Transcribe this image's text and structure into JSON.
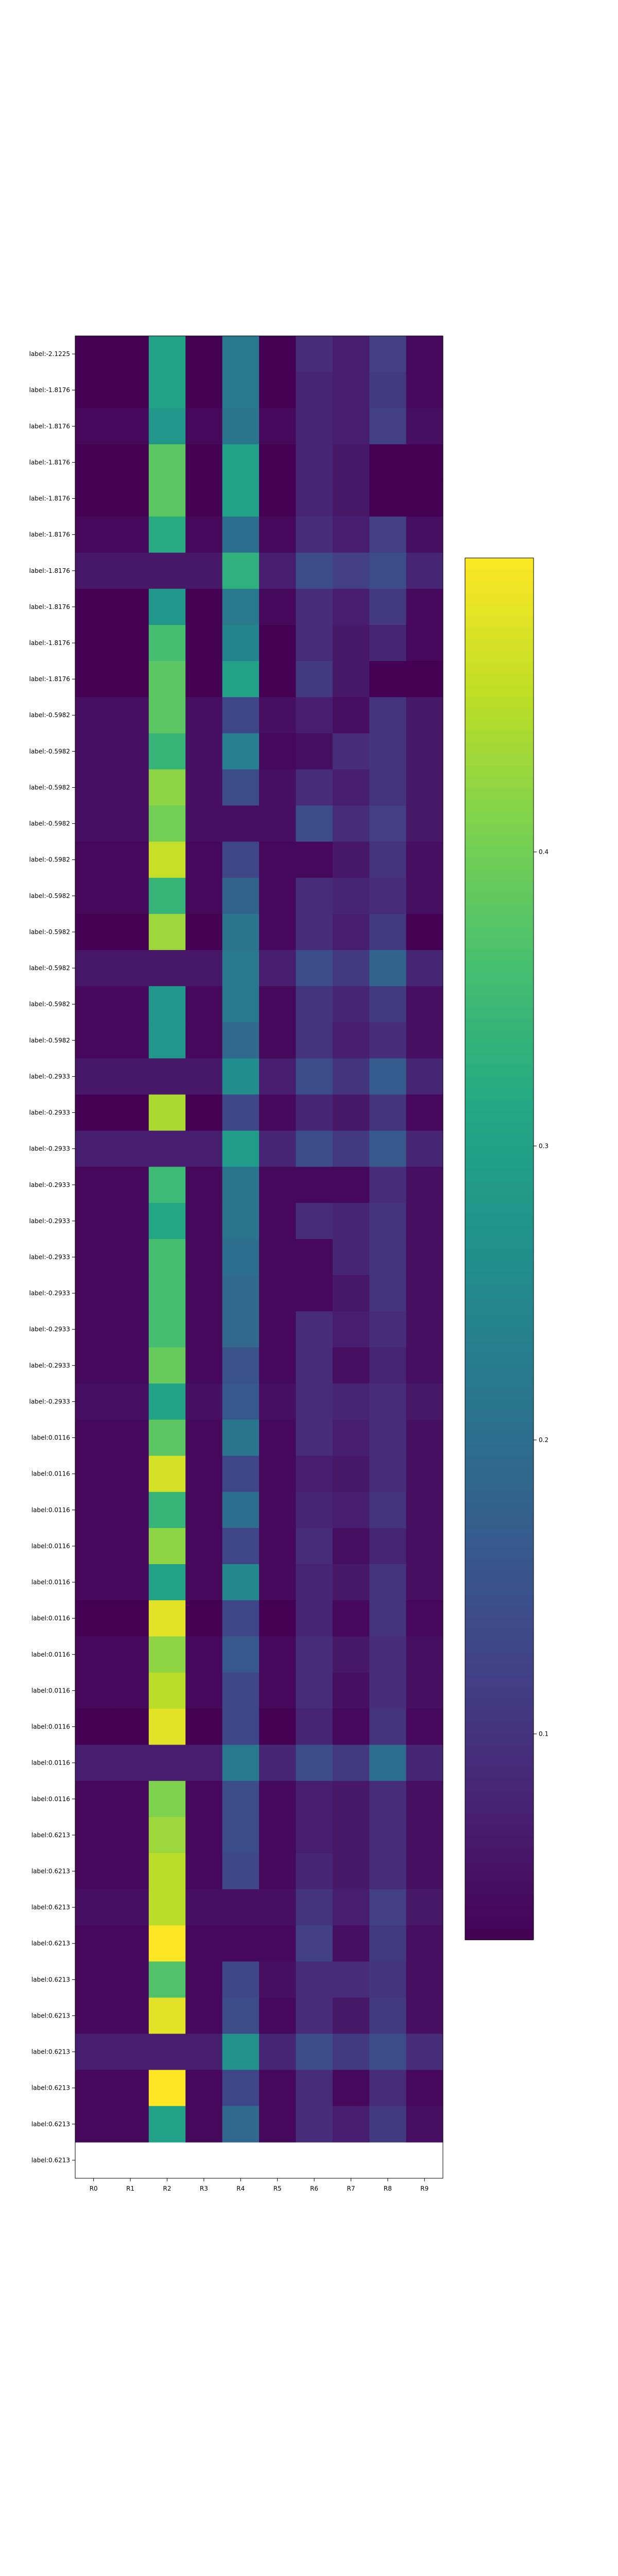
{
  "chart_data": {
    "type": "heatmap",
    "columns": [
      "R0",
      "R1",
      "R2",
      "R3",
      "R4",
      "R5",
      "R6",
      "R7",
      "R8",
      "R9"
    ],
    "rows": [
      "label:-2.1225",
      "label:-1.8176",
      "label:-1.8176",
      "label:-1.8176",
      "label:-1.8176",
      "label:-1.8176",
      "label:-1.8176",
      "label:-1.8176",
      "label:-1.8176",
      "label:-1.8176",
      "label:-0.5982",
      "label:-0.5982",
      "label:-0.5982",
      "label:-0.5982",
      "label:-0.5982",
      "label:-0.5982",
      "label:-0.5982",
      "label:-0.5982",
      "label:-0.5982",
      "label:-0.5982",
      "label:-0.2933",
      "label:-0.2933",
      "label:-0.2933",
      "label:-0.2933",
      "label:-0.2933",
      "label:-0.2933",
      "label:-0.2933",
      "label:-0.2933",
      "label:-0.2933",
      "label:-0.2933",
      "label:0.0116",
      "label:0.0116",
      "label:0.0116",
      "label:0.0116",
      "label:0.0116",
      "label:0.0116",
      "label:0.0116",
      "label:0.0116",
      "label:0.0116",
      "label:0.0116",
      "label:0.0116",
      "label:0.6213",
      "label:0.6213",
      "label:0.6213",
      "label:0.6213",
      "label:0.6213",
      "label:0.6213",
      "label:0.6213",
      "label:0.6213",
      "label:0.6213",
      "label:0.6213"
    ],
    "values": [
      [
        0.03,
        0.03,
        0.3,
        0.03,
        0.22,
        0.03,
        0.09,
        0.07,
        0.12,
        0.04
      ],
      [
        0.03,
        0.03,
        0.3,
        0.03,
        0.22,
        0.03,
        0.08,
        0.07,
        0.11,
        0.04
      ],
      [
        0.04,
        0.04,
        0.28,
        0.04,
        0.21,
        0.04,
        0.08,
        0.07,
        0.12,
        0.05
      ],
      [
        0.03,
        0.03,
        0.38,
        0.03,
        0.3,
        0.03,
        0.08,
        0.06,
        0.03,
        0.03
      ],
      [
        0.03,
        0.03,
        0.38,
        0.03,
        0.3,
        0.03,
        0.08,
        0.06,
        0.03,
        0.03
      ],
      [
        0.04,
        0.04,
        0.32,
        0.04,
        0.2,
        0.04,
        0.09,
        0.07,
        0.12,
        0.05
      ],
      [
        0.06,
        0.06,
        0.06,
        0.06,
        0.33,
        0.07,
        0.14,
        0.12,
        0.14,
        0.08
      ],
      [
        0.03,
        0.03,
        0.28,
        0.03,
        0.22,
        0.04,
        0.09,
        0.07,
        0.11,
        0.04
      ],
      [
        0.03,
        0.03,
        0.36,
        0.03,
        0.24,
        0.03,
        0.09,
        0.06,
        0.08,
        0.04
      ],
      [
        0.03,
        0.03,
        0.38,
        0.03,
        0.3,
        0.03,
        0.11,
        0.06,
        0.03,
        0.03
      ],
      [
        0.05,
        0.05,
        0.38,
        0.05,
        0.13,
        0.05,
        0.07,
        0.05,
        0.1,
        0.06
      ],
      [
        0.05,
        0.05,
        0.34,
        0.05,
        0.23,
        0.04,
        0.05,
        0.09,
        0.1,
        0.06
      ],
      [
        0.05,
        0.05,
        0.42,
        0.05,
        0.14,
        0.05,
        0.09,
        0.07,
        0.1,
        0.06
      ],
      [
        0.05,
        0.05,
        0.4,
        0.05,
        0.05,
        0.05,
        0.14,
        0.09,
        0.12,
        0.06
      ],
      [
        0.04,
        0.04,
        0.46,
        0.04,
        0.13,
        0.04,
        0.04,
        0.06,
        0.1,
        0.05
      ],
      [
        0.04,
        0.04,
        0.34,
        0.04,
        0.18,
        0.04,
        0.09,
        0.08,
        0.09,
        0.05
      ],
      [
        0.03,
        0.03,
        0.43,
        0.03,
        0.21,
        0.04,
        0.09,
        0.07,
        0.11,
        0.03
      ],
      [
        0.06,
        0.06,
        0.06,
        0.06,
        0.22,
        0.07,
        0.14,
        0.11,
        0.18,
        0.08
      ],
      [
        0.04,
        0.04,
        0.28,
        0.04,
        0.22,
        0.04,
        0.1,
        0.08,
        0.11,
        0.05
      ],
      [
        0.04,
        0.04,
        0.28,
        0.04,
        0.19,
        0.04,
        0.1,
        0.07,
        0.09,
        0.05
      ],
      [
        0.06,
        0.06,
        0.06,
        0.06,
        0.26,
        0.07,
        0.14,
        0.1,
        0.17,
        0.08
      ],
      [
        0.03,
        0.03,
        0.44,
        0.03,
        0.13,
        0.04,
        0.08,
        0.06,
        0.1,
        0.04
      ],
      [
        0.07,
        0.07,
        0.07,
        0.07,
        0.29,
        0.08,
        0.14,
        0.11,
        0.16,
        0.08
      ],
      [
        0.04,
        0.04,
        0.35,
        0.04,
        0.21,
        0.04,
        0.04,
        0.04,
        0.09,
        0.05
      ],
      [
        0.04,
        0.04,
        0.31,
        0.04,
        0.21,
        0.04,
        0.09,
        0.08,
        0.1,
        0.05
      ],
      [
        0.04,
        0.04,
        0.36,
        0.04,
        0.2,
        0.04,
        0.04,
        0.08,
        0.1,
        0.05
      ],
      [
        0.04,
        0.04,
        0.36,
        0.04,
        0.19,
        0.04,
        0.04,
        0.06,
        0.1,
        0.05
      ],
      [
        0.04,
        0.04,
        0.36,
        0.04,
        0.19,
        0.04,
        0.09,
        0.07,
        0.09,
        0.05
      ],
      [
        0.04,
        0.04,
        0.39,
        0.04,
        0.15,
        0.04,
        0.09,
        0.05,
        0.08,
        0.05
      ],
      [
        0.05,
        0.05,
        0.3,
        0.05,
        0.16,
        0.05,
        0.09,
        0.08,
        0.09,
        0.06
      ],
      [
        0.04,
        0.04,
        0.38,
        0.04,
        0.21,
        0.04,
        0.09,
        0.07,
        0.09,
        0.05
      ],
      [
        0.04,
        0.04,
        0.47,
        0.04,
        0.13,
        0.04,
        0.07,
        0.06,
        0.09,
        0.05
      ],
      [
        0.04,
        0.04,
        0.34,
        0.04,
        0.2,
        0.04,
        0.08,
        0.07,
        0.1,
        0.05
      ],
      [
        0.04,
        0.04,
        0.42,
        0.04,
        0.13,
        0.04,
        0.09,
        0.05,
        0.08,
        0.05
      ],
      [
        0.04,
        0.04,
        0.3,
        0.04,
        0.25,
        0.04,
        0.08,
        0.06,
        0.1,
        0.05
      ],
      [
        0.03,
        0.03,
        0.48,
        0.03,
        0.13,
        0.03,
        0.08,
        0.04,
        0.1,
        0.04
      ],
      [
        0.04,
        0.04,
        0.42,
        0.04,
        0.16,
        0.04,
        0.09,
        0.06,
        0.09,
        0.05
      ],
      [
        0.04,
        0.04,
        0.45,
        0.04,
        0.13,
        0.04,
        0.09,
        0.05,
        0.09,
        0.05
      ],
      [
        0.03,
        0.03,
        0.48,
        0.03,
        0.13,
        0.03,
        0.08,
        0.04,
        0.1,
        0.04
      ],
      [
        0.07,
        0.07,
        0.07,
        0.07,
        0.22,
        0.08,
        0.14,
        0.11,
        0.2,
        0.08
      ],
      [
        0.04,
        0.04,
        0.41,
        0.04,
        0.14,
        0.04,
        0.07,
        0.06,
        0.09,
        0.05
      ],
      [
        0.04,
        0.04,
        0.43,
        0.04,
        0.14,
        0.04,
        0.07,
        0.06,
        0.09,
        0.05
      ],
      [
        0.04,
        0.04,
        0.45,
        0.04,
        0.13,
        0.04,
        0.08,
        0.06,
        0.09,
        0.05
      ],
      [
        0.05,
        0.05,
        0.45,
        0.05,
        0.05,
        0.05,
        0.1,
        0.07,
        0.12,
        0.06
      ],
      [
        0.04,
        0.04,
        0.5,
        0.04,
        0.04,
        0.04,
        0.12,
        0.05,
        0.11,
        0.05
      ],
      [
        0.04,
        0.04,
        0.37,
        0.04,
        0.13,
        0.05,
        0.09,
        0.09,
        0.1,
        0.05
      ],
      [
        0.04,
        0.04,
        0.48,
        0.04,
        0.14,
        0.04,
        0.09,
        0.06,
        0.11,
        0.05
      ],
      [
        0.07,
        0.07,
        0.07,
        0.07,
        0.27,
        0.08,
        0.14,
        0.11,
        0.14,
        0.09
      ],
      [
        0.04,
        0.04,
        0.5,
        0.04,
        0.13,
        0.04,
        0.09,
        0.04,
        0.09,
        0.04
      ],
      [
        0.04,
        0.04,
        0.3,
        0.04,
        0.19,
        0.04,
        0.09,
        0.07,
        0.11,
        0.05
      ]
    ],
    "colorbar": {
      "colormap": "viridis",
      "vmin": 0.03,
      "vmax": 0.5,
      "ticks": [
        0.1,
        0.2,
        0.3,
        0.4
      ],
      "tick_labels": [
        "0.1",
        "0.2",
        "0.3",
        "0.4"
      ]
    }
  }
}
